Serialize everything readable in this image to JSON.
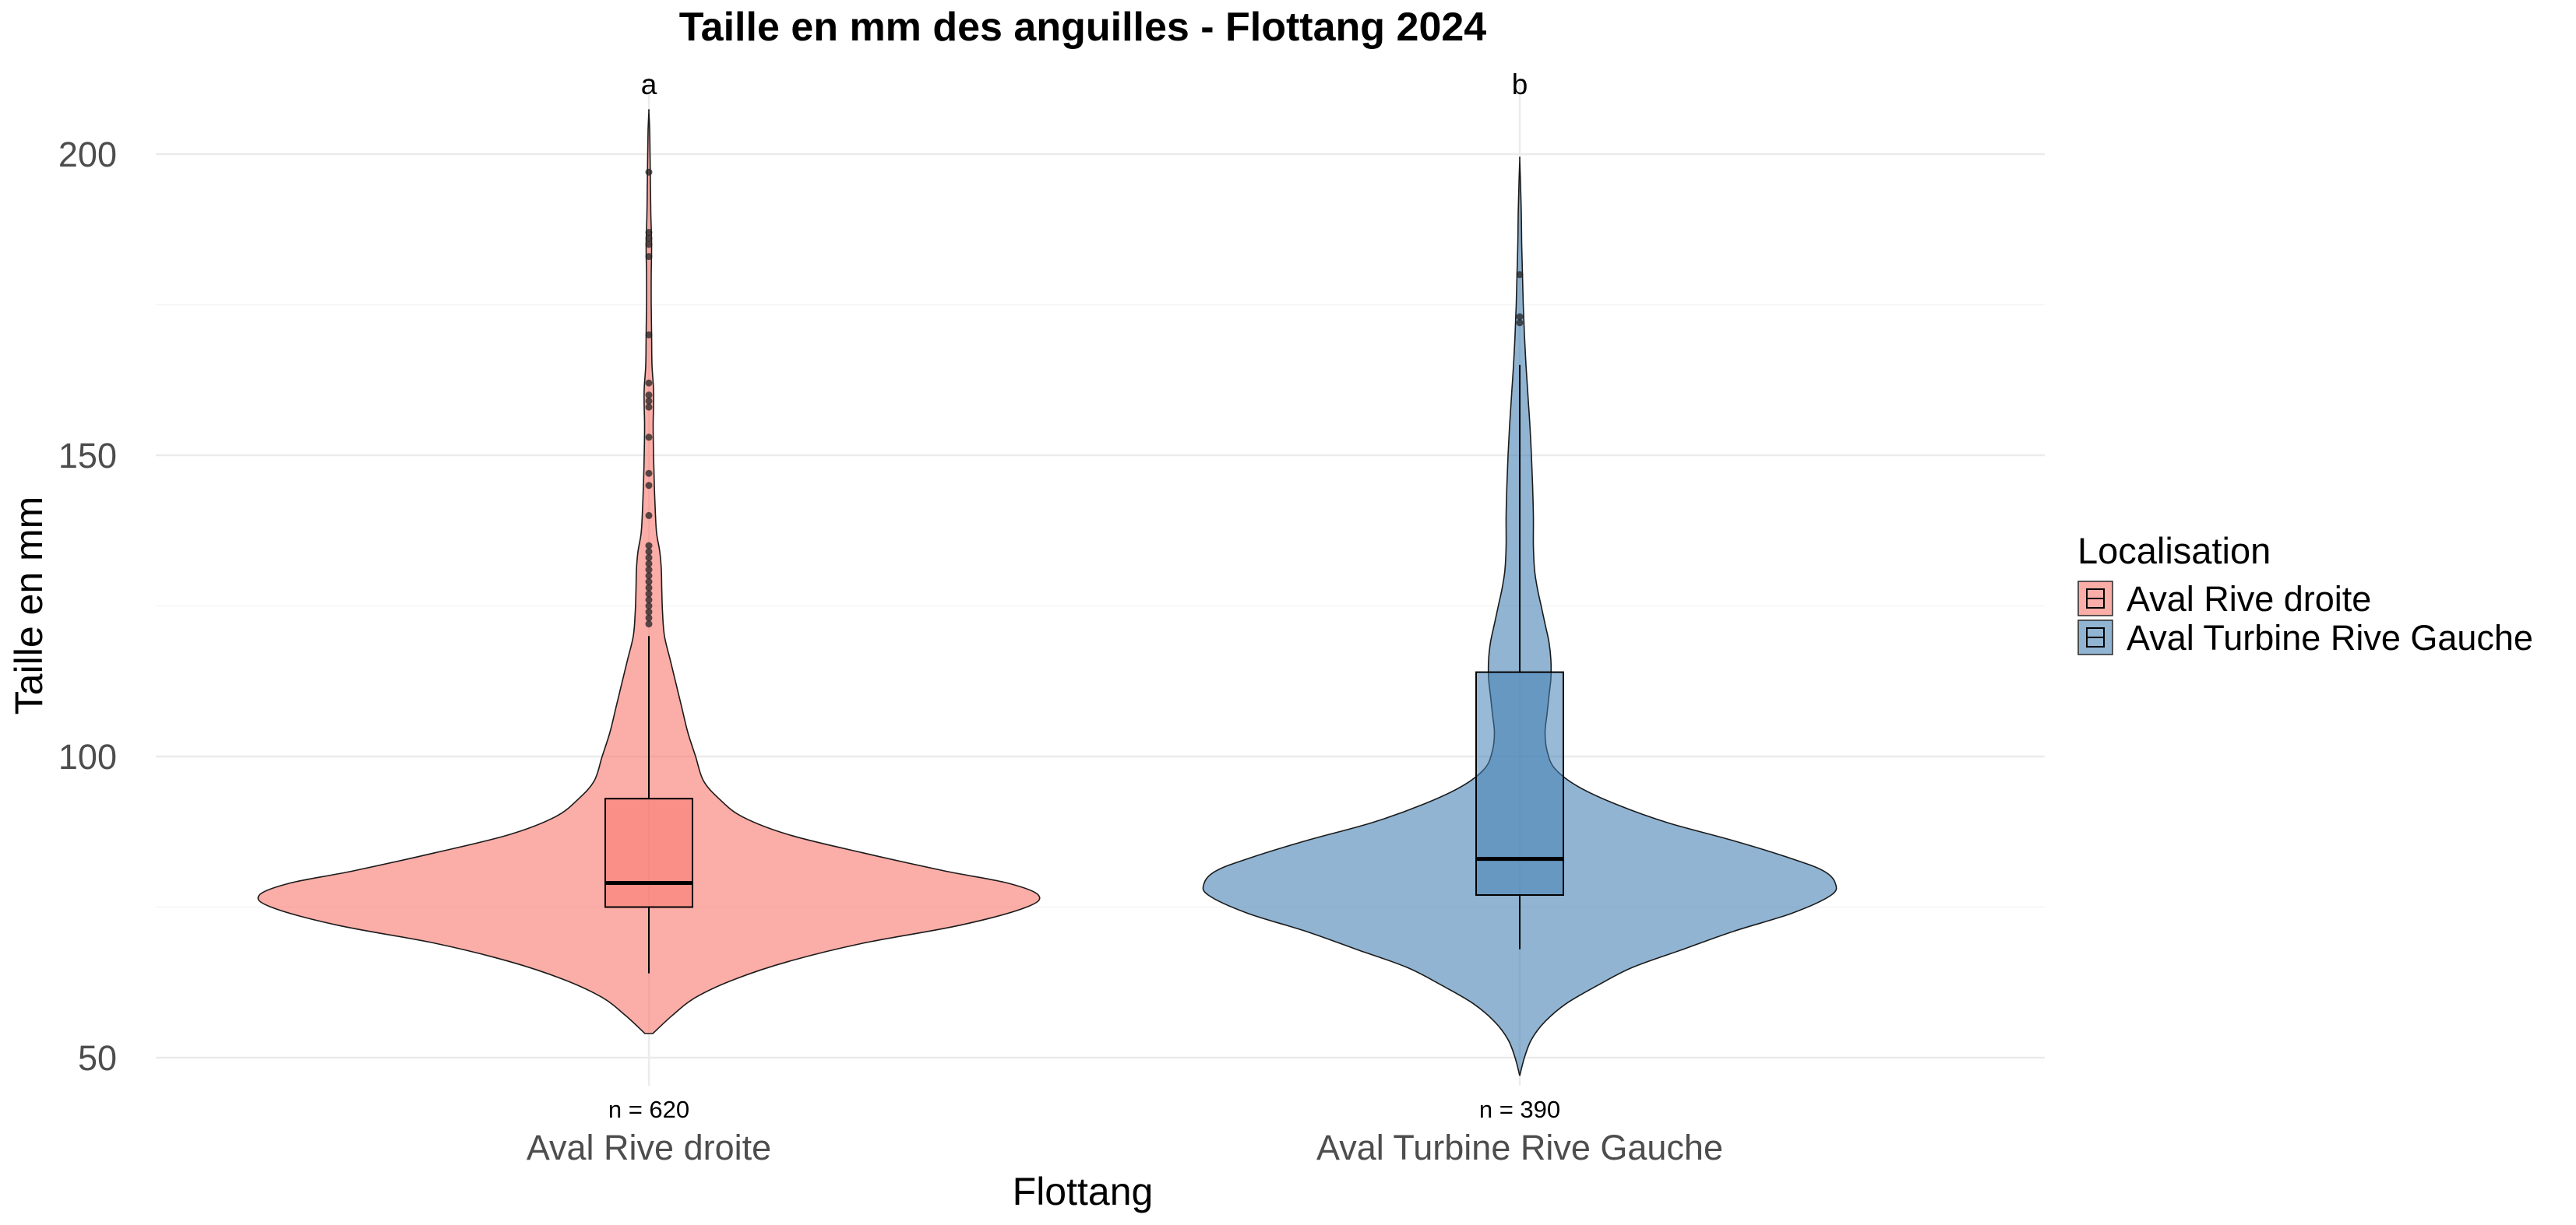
{
  "chart_data": {
    "type": "violin",
    "title": "Taille en mm des anguilles - Flottang 2024",
    "xlabel": "Flottang",
    "ylabel": "Taille en mm",
    "ylim": [
      46,
      210
    ],
    "yticks": [
      50,
      100,
      150,
      200
    ],
    "grid": true,
    "legend": {
      "title": "Localisation",
      "position": "right"
    },
    "categories": [
      "Aval Rive droite",
      "Aval Turbine Rive Gauche"
    ],
    "series": [
      {
        "name": "Aval Rive droite",
        "color": "#F8766D",
        "n_label": "n = 620",
        "group_letter": "a",
        "box": {
          "min": 64,
          "q1": 75,
          "median": 79,
          "q3": 93,
          "max": 120
        },
        "outliers": [
          122,
          123,
          124,
          125,
          126,
          127,
          128,
          129,
          130,
          131,
          132,
          133,
          134,
          135,
          140,
          145,
          147,
          153,
          158,
          159,
          160,
          162,
          170,
          183,
          185,
          186,
          187,
          197
        ],
        "density": [
          [
            54,
            0.01
          ],
          [
            57,
            0.06
          ],
          [
            60,
            0.12
          ],
          [
            63,
            0.22
          ],
          [
            66,
            0.36
          ],
          [
            69,
            0.55
          ],
          [
            72,
            0.8
          ],
          [
            75,
            0.97
          ],
          [
            77,
            1.0
          ],
          [
            79,
            0.92
          ],
          [
            81,
            0.76
          ],
          [
            84,
            0.55
          ],
          [
            87,
            0.36
          ],
          [
            90,
            0.24
          ],
          [
            93,
            0.18
          ],
          [
            96,
            0.14
          ],
          [
            100,
            0.12
          ],
          [
            104,
            0.1
          ],
          [
            108,
            0.085
          ],
          [
            112,
            0.07
          ],
          [
            116,
            0.055
          ],
          [
            120,
            0.04
          ],
          [
            124,
            0.035
          ],
          [
            128,
            0.033
          ],
          [
            131,
            0.032
          ],
          [
            134,
            0.028
          ],
          [
            137,
            0.02
          ],
          [
            140,
            0.017
          ],
          [
            145,
            0.014
          ],
          [
            150,
            0.012
          ],
          [
            155,
            0.011
          ],
          [
            158,
            0.012
          ],
          [
            161,
            0.012
          ],
          [
            165,
            0.008
          ],
          [
            170,
            0.007
          ],
          [
            175,
            0.006
          ],
          [
            180,
            0.006
          ],
          [
            185,
            0.007
          ],
          [
            190,
            0.005
          ],
          [
            195,
            0.004
          ],
          [
            200,
            0.003
          ],
          [
            204,
            0.002
          ],
          [
            207,
            0.0
          ]
        ]
      },
      {
        "name": "Aval Turbine Rive Gauche",
        "color": "#4682B4",
        "n_label": "n = 390",
        "group_letter": "b",
        "box": {
          "min": 68,
          "q1": 77,
          "median": 83,
          "q3": 114,
          "max": 165
        },
        "outliers": [
          172,
          173,
          180
        ],
        "density": [
          [
            47,
            0.0
          ],
          [
            50,
            0.012
          ],
          [
            53,
            0.03
          ],
          [
            56,
            0.065
          ],
          [
            59,
            0.12
          ],
          [
            62,
            0.2
          ],
          [
            65,
            0.29
          ],
          [
            68,
            0.42
          ],
          [
            71,
            0.55
          ],
          [
            74,
            0.7
          ],
          [
            77,
            0.8
          ],
          [
            79,
            0.81
          ],
          [
            81,
            0.78
          ],
          [
            83,
            0.7
          ],
          [
            86,
            0.55
          ],
          [
            89,
            0.38
          ],
          [
            92,
            0.25
          ],
          [
            95,
            0.15
          ],
          [
            98,
            0.09
          ],
          [
            101,
            0.07
          ],
          [
            104,
            0.065
          ],
          [
            107,
            0.07
          ],
          [
            110,
            0.075
          ],
          [
            113,
            0.08
          ],
          [
            116,
            0.08
          ],
          [
            119,
            0.075
          ],
          [
            122,
            0.065
          ],
          [
            125,
            0.055
          ],
          [
            128,
            0.045
          ],
          [
            131,
            0.038
          ],
          [
            135,
            0.035
          ],
          [
            140,
            0.035
          ],
          [
            145,
            0.033
          ],
          [
            150,
            0.03
          ],
          [
            155,
            0.026
          ],
          [
            160,
            0.021
          ],
          [
            165,
            0.016
          ],
          [
            170,
            0.012
          ],
          [
            175,
            0.009
          ],
          [
            180,
            0.007
          ],
          [
            185,
            0.005
          ],
          [
            190,
            0.004
          ],
          [
            195,
            0.002
          ],
          [
            199,
            0.0
          ]
        ]
      }
    ]
  }
}
